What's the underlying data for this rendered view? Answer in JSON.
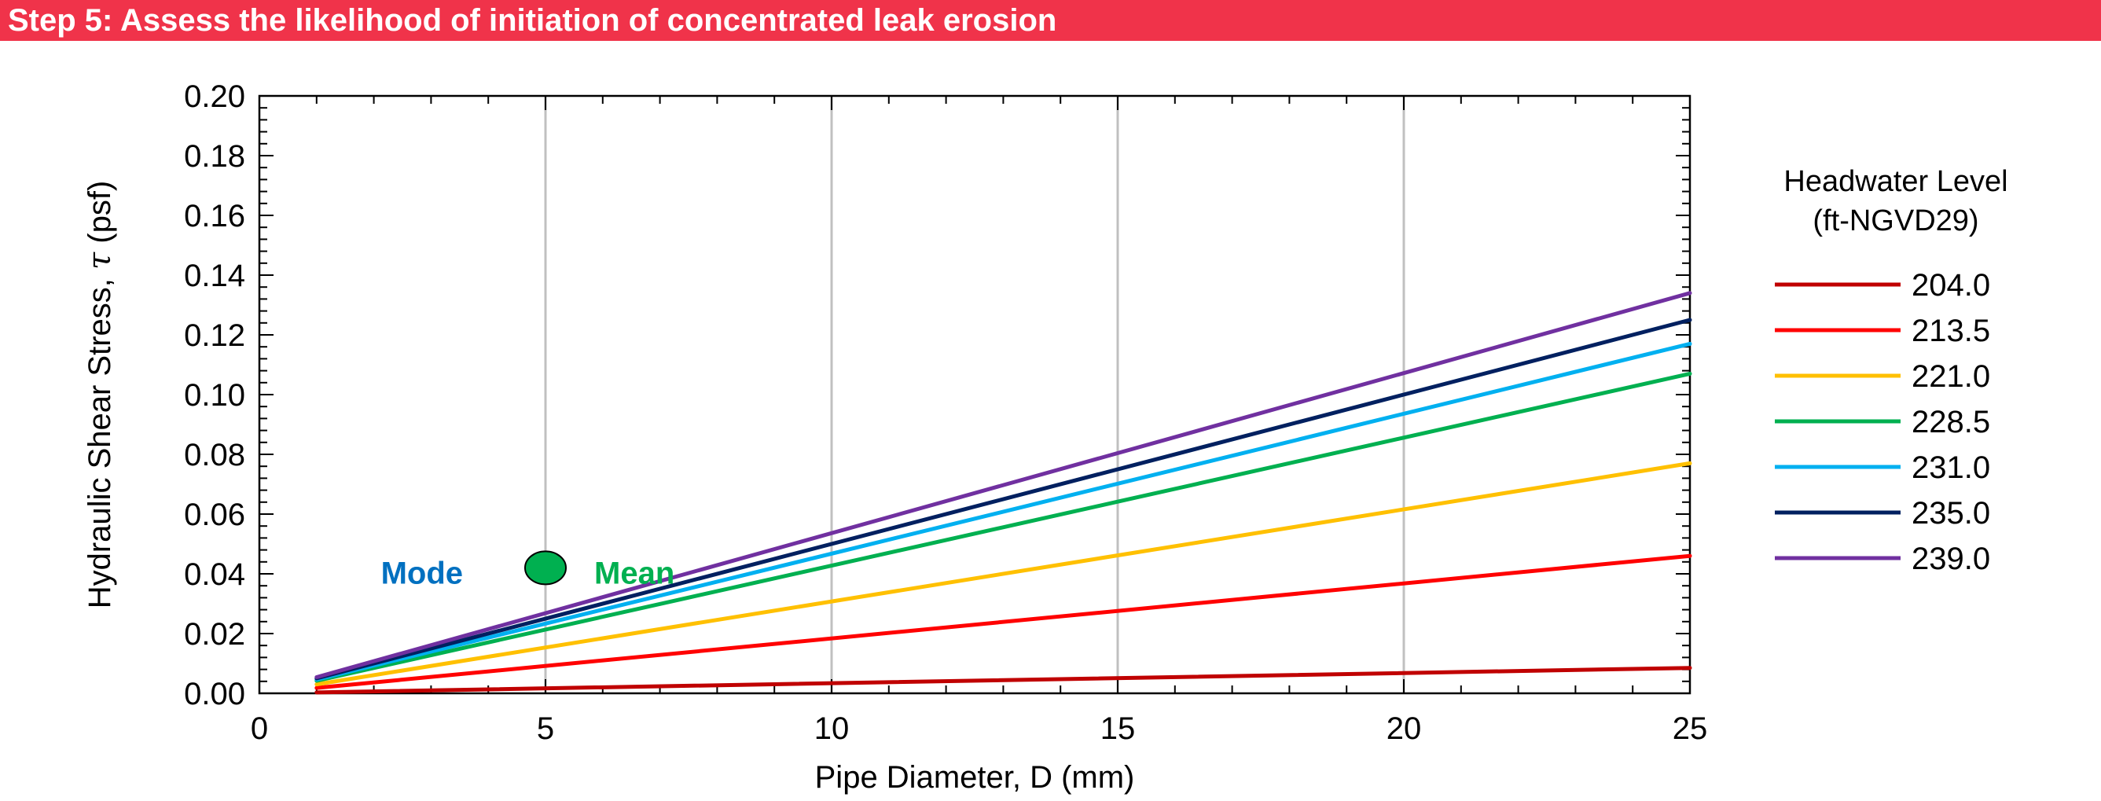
{
  "banner": {
    "title": "Step 5: Assess the likelihood of initiation of concentrated leak erosion"
  },
  "chart_data": {
    "type": "line",
    "xlabel": "Pipe Diameter,  D (mm)",
    "ylabel_text": "Hydraulic Shear Stress, ",
    "ylabel_symbol": "τ",
    "ylabel_unit": " (psf)",
    "xlim": [
      0,
      25
    ],
    "ylim": [
      0,
      0.2
    ],
    "x_ticks": [
      "0",
      "5",
      "10",
      "15",
      "20",
      "25"
    ],
    "y_ticks": [
      "0.00",
      "0.02",
      "0.04",
      "0.06",
      "0.08",
      "0.10",
      "0.12",
      "0.14",
      "0.16",
      "0.18",
      "0.20"
    ],
    "grid": "major-x-only",
    "legend": {
      "title_line1": "Headwater  Level",
      "title_line2": "(ft-NGVD29)",
      "placement": "right"
    },
    "series": [
      {
        "name": "204.0",
        "color": "#c00000",
        "x": [
          1,
          25
        ],
        "y": [
          0.0003,
          0.0085
        ]
      },
      {
        "name": "213.5",
        "color": "#ff0000",
        "x": [
          1,
          25
        ],
        "y": [
          0.0018,
          0.046
        ]
      },
      {
        "name": "221.0",
        "color": "#ffc000",
        "x": [
          1,
          25
        ],
        "y": [
          0.003,
          0.077
        ]
      },
      {
        "name": "228.5",
        "color": "#00b050",
        "x": [
          1,
          25
        ],
        "y": [
          0.0042,
          0.107
        ]
      },
      {
        "name": "231.0",
        "color": "#00b0f0",
        "x": [
          1,
          25
        ],
        "y": [
          0.0046,
          0.117
        ]
      },
      {
        "name": "235.0",
        "color": "#002060",
        "x": [
          1,
          25
        ],
        "y": [
          0.005,
          0.125
        ]
      },
      {
        "name": "239.0",
        "color": "#7030a0",
        "x": [
          1,
          25
        ],
        "y": [
          0.0054,
          0.134
        ]
      }
    ],
    "marker": {
      "x": 5,
      "y": 0.042,
      "color": "#00b050"
    },
    "annotations": [
      {
        "text": "Mode",
        "color": "#0070c0"
      },
      {
        "text": "Mean",
        "color": "#00b050"
      }
    ]
  }
}
